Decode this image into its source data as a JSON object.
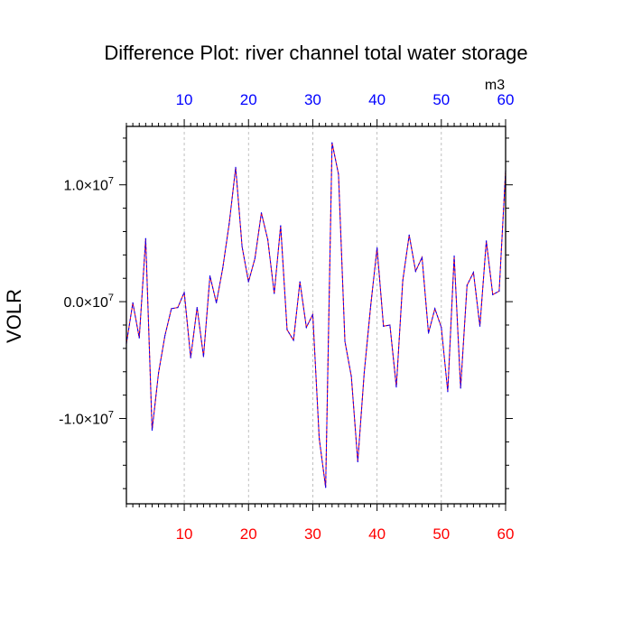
{
  "chart_data": {
    "type": "line",
    "title": "Difference Plot: river channel total water storage",
    "units": "m3",
    "ylabel": "VOLR",
    "xlabel": "",
    "xlim": [
      1,
      60
    ],
    "ylim": [
      -17300000.0,
      15000000.0
    ],
    "x_ticks": [
      10,
      20,
      30,
      40,
      50,
      60
    ],
    "x_tick_labels": [
      "10",
      "20",
      "30",
      "40",
      "50",
      "60"
    ],
    "y_ticks": [
      {
        "value": 10000000.0,
        "mantissa": "1.0",
        "times": "×10",
        "exp": "7"
      },
      {
        "value": 0.0,
        "mantissa": "0.0",
        "times": "×10",
        "exp": "7"
      },
      {
        "value": -10000000.0,
        "mantissa": "-1.0",
        "times": "×10",
        "exp": "7"
      }
    ],
    "y_minor_step": 2000000.0,
    "grid": {
      "x_vertical_dashed": true
    },
    "colors": {
      "bottom_ticks": "#ff0000",
      "top_ticks": "#0000ff",
      "series_a": "#ff0000",
      "series_b": "#0000ff"
    },
    "x": [
      1,
      2,
      3,
      4,
      5,
      6,
      7,
      8,
      9,
      10,
      11,
      12,
      13,
      14,
      15,
      16,
      17,
      18,
      19,
      20,
      21,
      22,
      23,
      24,
      25,
      26,
      27,
      28,
      29,
      30,
      31,
      32,
      33,
      34,
      35,
      36,
      37,
      38,
      39,
      40,
      41,
      42,
      43,
      44,
      45,
      46,
      47,
      48,
      49,
      50,
      51,
      52,
      53,
      54,
      55,
      56,
      57,
      58,
      59,
      60
    ],
    "series": [
      {
        "values": [
          -3600000.0,
          -100000.0,
          -3100000.0,
          5400000.0,
          -11000000.0,
          -6100000.0,
          -2900000.0,
          -600000.0,
          -500000.0,
          800000.0,
          -4800000.0,
          -500000.0,
          -4700000.0,
          2200000.0,
          -100000.0,
          2900000.0,
          6700000.0,
          11500000.0,
          4700000.0,
          1700000.0,
          3700000.0,
          7600000.0,
          5300000.0,
          700000.0,
          6500000.0,
          -2400000.0,
          -3300000.0,
          1700000.0,
          -2200000.0,
          -1100000.0,
          -11700000.0,
          -15900000.0,
          13600000.0,
          10900000.0,
          -3400000.0,
          -6400000.0,
          -13700000.0,
          -6100000.0,
          -400000.0,
          4600000.0,
          -2100000.0,
          -2000000.0,
          -7300000.0,
          1800000.0,
          5700000.0,
          2600000.0,
          3800000.0,
          -2700000.0,
          -600000.0,
          -2200000.0,
          -7700000.0,
          3900000.0,
          -7400000.0,
          1400000.0,
          2500000.0,
          -2100000.0,
          5200000.0,
          600000.0,
          900000.0,
          11200000.0
        ]
      }
    ]
  }
}
